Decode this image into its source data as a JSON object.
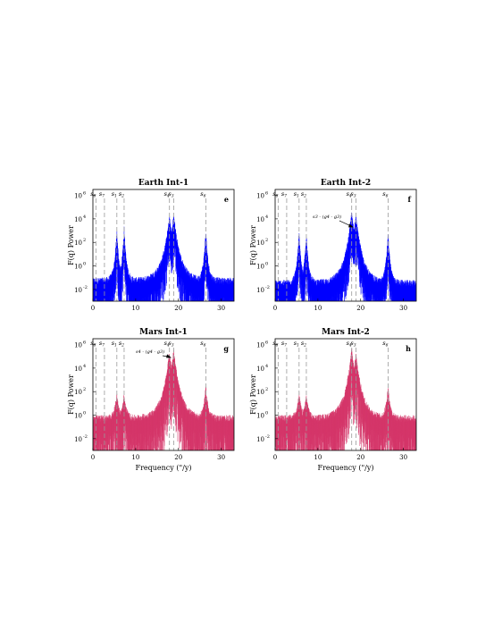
{
  "figure": {
    "xlabel": "Frequency (\"/y)",
    "ylabel": "F(q) Power",
    "xticks": [
      "0",
      "10",
      "20",
      "30"
    ],
    "yticks": [
      {
        "base": "10",
        "exp": "6"
      },
      {
        "base": "10",
        "exp": "4"
      },
      {
        "base": "10",
        "exp": "2"
      },
      {
        "base": "10",
        "exp": "0"
      },
      {
        "base": "10",
        "exp": "-2"
      }
    ],
    "lines": [
      {
        "label": "s8",
        "sub": "8",
        "x": 0.7
      },
      {
        "label": "s7",
        "sub": "7",
        "x": 2.7
      },
      {
        "label": "s1",
        "sub": "1",
        "x": 5.6
      },
      {
        "label": "s2",
        "sub": "2",
        "x": 7.3
      },
      {
        "label": "s4",
        "sub": "4",
        "x": 17.9
      },
      {
        "label": "s3",
        "sub": "3",
        "x": 18.9
      },
      {
        "label": "s6",
        "sub": "6",
        "x": 26.4
      }
    ]
  },
  "chart_data": [
    {
      "type": "line",
      "title": "Earth Int-1",
      "panel_label": "e",
      "color": "#0000ff",
      "xlim": [
        0,
        33
      ],
      "ylim_log10": [
        -3,
        6.5
      ],
      "yscale": "log",
      "peaks": [
        {
          "x": 5.6,
          "log10_y": 2.6
        },
        {
          "x": 7.3,
          "log10_y": 2.8
        },
        {
          "x": 17.9,
          "log10_y": 3.8
        },
        {
          "x": 18.9,
          "log10_y": 3.9
        },
        {
          "x": 26.4,
          "log10_y": 2.6
        }
      ],
      "baseline_log10": -1.6,
      "annotation": ""
    },
    {
      "type": "line",
      "title": "Earth Int-2",
      "panel_label": "f",
      "color": "#0000ff",
      "xlim": [
        0,
        33
      ],
      "ylim_log10": [
        -3,
        6.5
      ],
      "yscale": "log",
      "peaks": [
        {
          "x": 5.6,
          "log10_y": 2.4
        },
        {
          "x": 7.3,
          "log10_y": 2.2
        },
        {
          "x": 17.9,
          "log10_y": 4.2
        },
        {
          "x": 18.9,
          "log10_y": 4.0
        },
        {
          "x": 26.4,
          "log10_y": 2.4
        }
      ],
      "baseline_log10": -1.8,
      "annotation": "s3 - (g4 - g3)"
    },
    {
      "type": "line",
      "title": "Mars Int-1",
      "panel_label": "g",
      "color": "#d6366a",
      "xlim": [
        0,
        33
      ],
      "ylim_log10": [
        -3,
        6.5
      ],
      "yscale": "log",
      "peaks": [
        {
          "x": 5.6,
          "log10_y": 1.4
        },
        {
          "x": 7.3,
          "log10_y": 1.3
        },
        {
          "x": 17.9,
          "log10_y": 5.0
        },
        {
          "x": 18.9,
          "log10_y": 5.2
        },
        {
          "x": 26.4,
          "log10_y": 2.0
        }
      ],
      "baseline_log10": -0.6,
      "annotation": "s4 - (g4 - g3)"
    },
    {
      "type": "line",
      "title": "Mars Int-2",
      "panel_label": "h",
      "color": "#d6366a",
      "xlim": [
        0,
        33
      ],
      "ylim_log10": [
        -3,
        6.5
      ],
      "yscale": "log",
      "peaks": [
        {
          "x": 5.6,
          "log10_y": 1.4
        },
        {
          "x": 7.3,
          "log10_y": 1.3
        },
        {
          "x": 17.9,
          "log10_y": 5.2
        },
        {
          "x": 18.9,
          "log10_y": 4.8
        },
        {
          "x": 26.4,
          "log10_y": 2.0
        }
      ],
      "baseline_log10": -0.6,
      "annotation": ""
    }
  ]
}
